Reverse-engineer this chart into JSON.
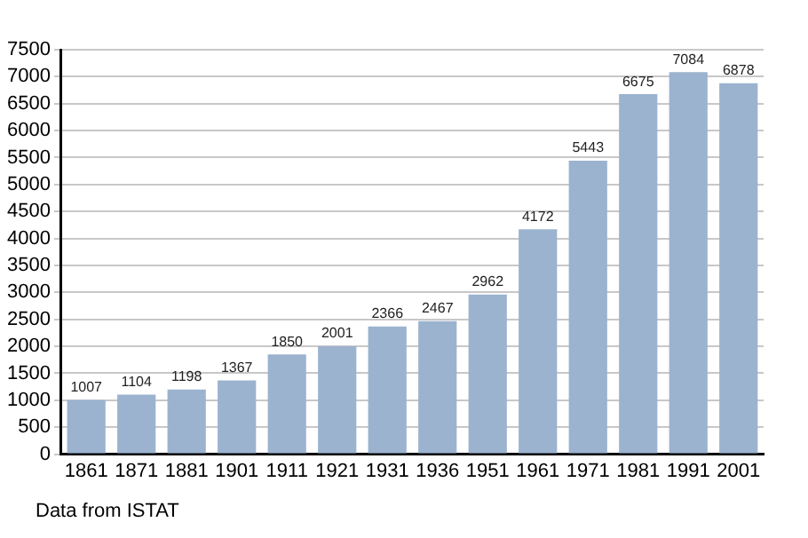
{
  "chart_data": {
    "type": "bar",
    "categories": [
      "1861",
      "1871",
      "1881",
      "1901",
      "1911",
      "1921",
      "1931",
      "1936",
      "1951",
      "1961",
      "1971",
      "1981",
      "1991",
      "2001"
    ],
    "values": [
      1007,
      1104,
      1198,
      1367,
      1850,
      2001,
      2366,
      2467,
      2962,
      4172,
      5443,
      6675,
      7084,
      6878
    ],
    "color": "#9bb3cf",
    "ylim": [
      0,
      7500
    ],
    "yticks": [
      0,
      500,
      1000,
      1500,
      2000,
      2500,
      3000,
      3500,
      4000,
      4500,
      5000,
      5500,
      6000,
      6500,
      7000,
      7500
    ],
    "grid": "y",
    "data_labels": true,
    "legend": false,
    "annotations": [
      "Data from ISTAT"
    ]
  }
}
